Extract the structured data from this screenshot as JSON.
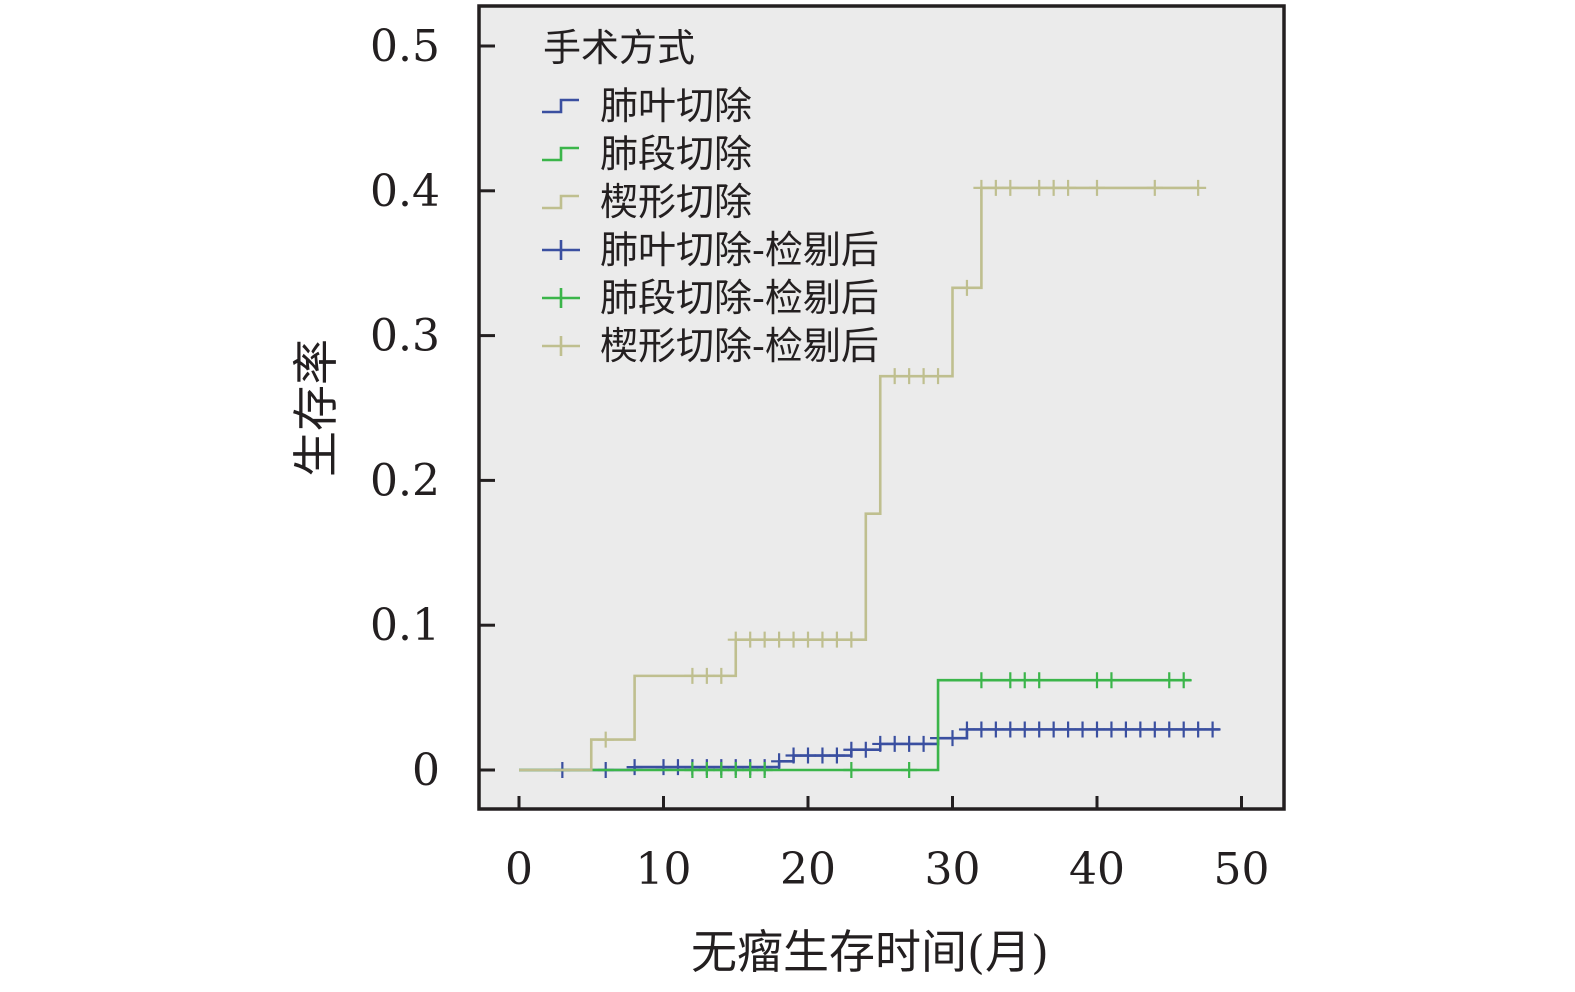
{
  "chart_data": {
    "type": "line",
    "subtype": "step",
    "xlabel": "无瘤生存时间(月)",
    "ylabel": "生存率",
    "xlim": [
      0,
      50
    ],
    "ylim": [
      0,
      0.5
    ],
    "xticks": [
      "0",
      "10",
      "20",
      "30",
      "40",
      "50"
    ],
    "yticks": [
      "0",
      "0.1",
      "0.2",
      "0.3",
      "0.4",
      "0.5"
    ],
    "grid": false,
    "background": "#ebebeb",
    "legend": {
      "title": "手术方式",
      "placement": "top-left",
      "entries": [
        {
          "label": "肺叶切除",
          "series": "lobectomy",
          "symbol": "step"
        },
        {
          "label": "肺段切除",
          "series": "segmentectomy",
          "symbol": "step"
        },
        {
          "label": "楔形切除",
          "series": "wedge",
          "symbol": "step"
        },
        {
          "label": "肺叶切除-检剔后",
          "series": "lobectomy",
          "symbol": "censor"
        },
        {
          "label": "肺段切除-检剔后",
          "series": "segmentectomy",
          "symbol": "censor"
        },
        {
          "label": "楔形切除-检剔后",
          "series": "wedge",
          "symbol": "censor"
        }
      ]
    },
    "series": [
      {
        "id": "lobectomy",
        "name": "肺叶切除",
        "color": "#3a4fa0",
        "steps": [
          [
            0,
            0
          ],
          [
            8,
            0.002
          ],
          [
            18,
            0.006
          ],
          [
            19,
            0.01
          ],
          [
            23,
            0.014
          ],
          [
            25,
            0.018
          ],
          [
            29,
            0.022
          ],
          [
            31,
            0.028
          ],
          [
            48.5,
            0.028
          ]
        ],
        "censored": [
          3,
          6,
          8,
          10,
          11,
          12,
          13,
          14,
          15,
          16,
          17,
          18,
          19,
          20,
          21,
          22,
          23,
          24,
          25,
          26,
          27,
          28,
          29,
          30,
          31,
          32,
          33,
          34,
          35,
          36,
          37,
          38,
          39,
          40,
          41,
          42,
          43,
          44,
          45,
          46,
          47,
          48
        ]
      },
      {
        "id": "segmentectomy",
        "name": "肺段切除",
        "color": "#3bb54a",
        "steps": [
          [
            0,
            0
          ],
          [
            29,
            0.062
          ],
          [
            46.5,
            0.062
          ]
        ],
        "censored": [
          12,
          13,
          14,
          15,
          16,
          17,
          23,
          27,
          32,
          34,
          35,
          36,
          40,
          41,
          45,
          46
        ]
      },
      {
        "id": "wedge",
        "name": "楔形切除",
        "color": "#bfbf8f",
        "steps": [
          [
            0,
            0
          ],
          [
            5,
            0.021
          ],
          [
            8,
            0.065
          ],
          [
            15,
            0.09
          ],
          [
            24,
            0.177
          ],
          [
            25,
            0.272
          ],
          [
            30,
            0.333
          ],
          [
            32,
            0.402
          ],
          [
            47,
            0.402
          ]
        ],
        "censored": [
          6,
          12,
          13,
          14,
          15,
          16,
          17,
          18,
          19,
          20,
          21,
          22,
          23,
          26,
          27,
          28,
          29,
          31,
          32,
          33,
          34,
          36,
          37,
          38,
          40,
          44,
          47
        ]
      }
    ]
  }
}
